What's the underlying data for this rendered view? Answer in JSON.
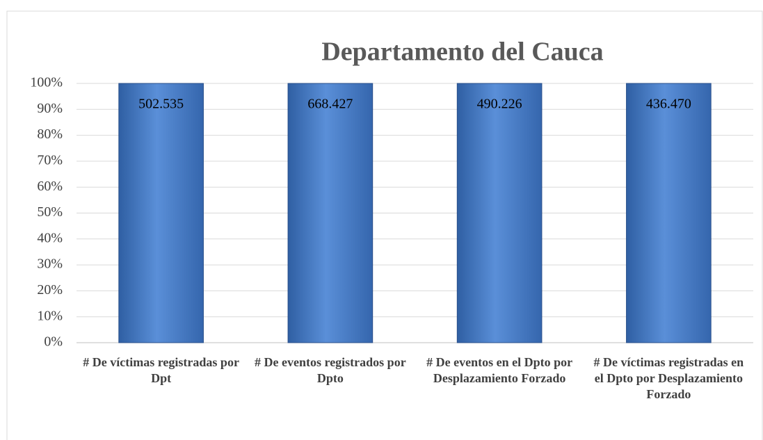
{
  "chart_data": {
    "type": "bar",
    "stacked_percent": true,
    "title": "Departamento del Cauca",
    "categories": [
      "# De víctimas registradas por Dpt",
      "# De eventos registrados por Dpto",
      "# De eventos en el Dpto por Desplazamiento Forzado",
      "# De víctimas registradas en el Dpto por Desplazamiento Forzado"
    ],
    "values": [
      502535,
      668427,
      490226,
      436470
    ],
    "value_labels": [
      "502.535",
      "668.427",
      "490.226",
      "436.470"
    ],
    "color": "#4a7ec4",
    "ylim": [
      0,
      100
    ],
    "yticks": [
      {
        "value": 0,
        "label": "0%"
      },
      {
        "value": 10,
        "label": "10%"
      },
      {
        "value": 20,
        "label": "20%"
      },
      {
        "value": 30,
        "label": "30%"
      },
      {
        "value": 40,
        "label": "40%"
      },
      {
        "value": 50,
        "label": "50%"
      },
      {
        "value": 60,
        "label": "60%"
      },
      {
        "value": 70,
        "label": "70%"
      },
      {
        "value": 80,
        "label": "80%"
      },
      {
        "value": 90,
        "label": "90%"
      },
      {
        "value": 100,
        "label": "100%"
      }
    ],
    "grid": true
  }
}
